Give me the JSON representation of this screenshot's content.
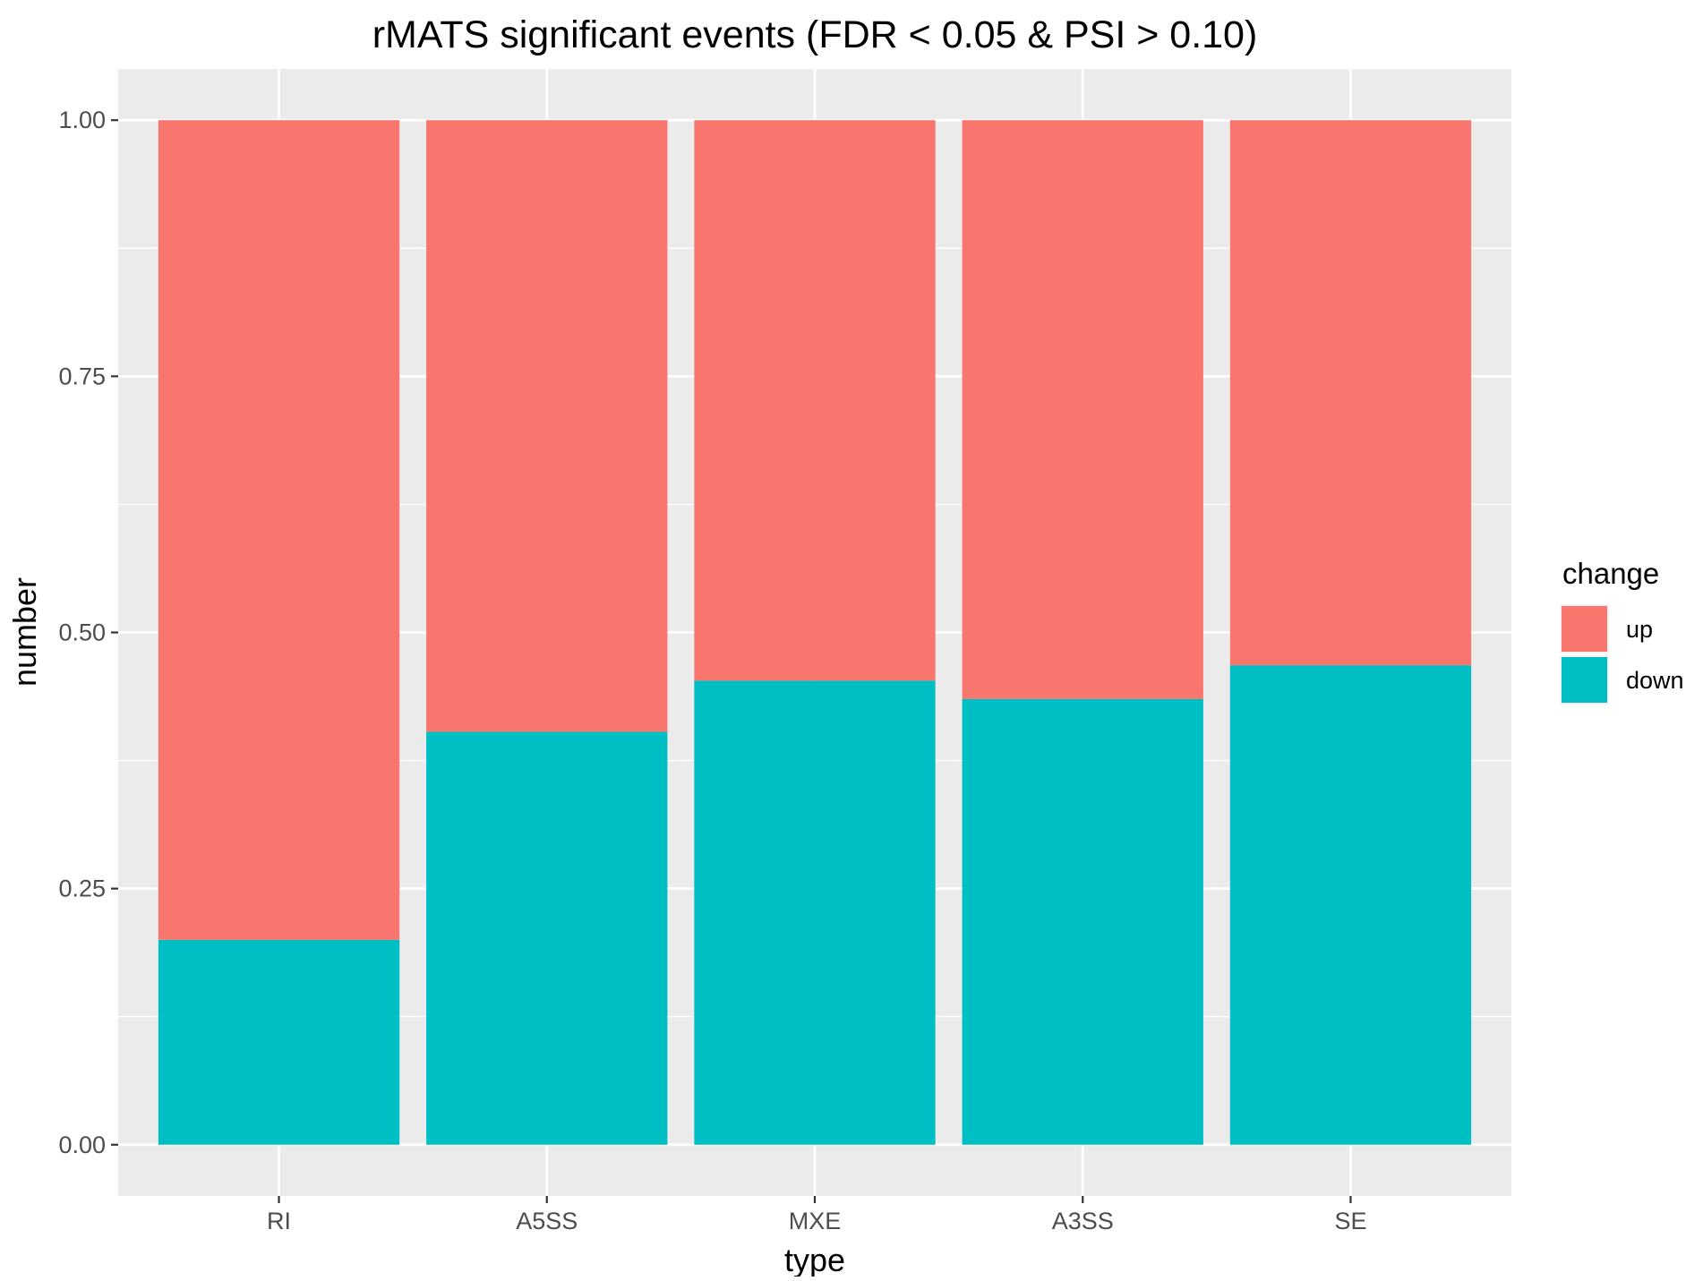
{
  "chart_data": {
    "type": "bar",
    "stacked": true,
    "title": "rMATS significant events (FDR < 0.05 & PSI > 0.10)",
    "xlabel": "type",
    "ylabel": "number",
    "categories": [
      "RI",
      "A5SS",
      "MXE",
      "A3SS",
      "SE"
    ],
    "ylim": [
      -0.05,
      1.05
    ],
    "yticks": [
      0.0,
      0.25,
      0.5,
      0.75,
      1.0
    ],
    "ytick_labels": [
      "0.00",
      "0.25",
      "0.50",
      "0.75",
      "1.00"
    ],
    "grid": true,
    "legend": {
      "title": "change",
      "placement": "right"
    },
    "series": [
      {
        "name": "up",
        "color": "#F8766D",
        "values": [
          0.8,
          0.597,
          0.547,
          0.565,
          0.532
        ]
      },
      {
        "name": "down",
        "color": "#00BFC4",
        "values": [
          0.2,
          0.403,
          0.453,
          0.435,
          0.468
        ]
      }
    ],
    "stack_order": [
      "down",
      "up"
    ],
    "legend_order": [
      "up",
      "down"
    ],
    "panel_background": "#EBEBEB",
    "gridline_color": "#FFFFFF"
  }
}
